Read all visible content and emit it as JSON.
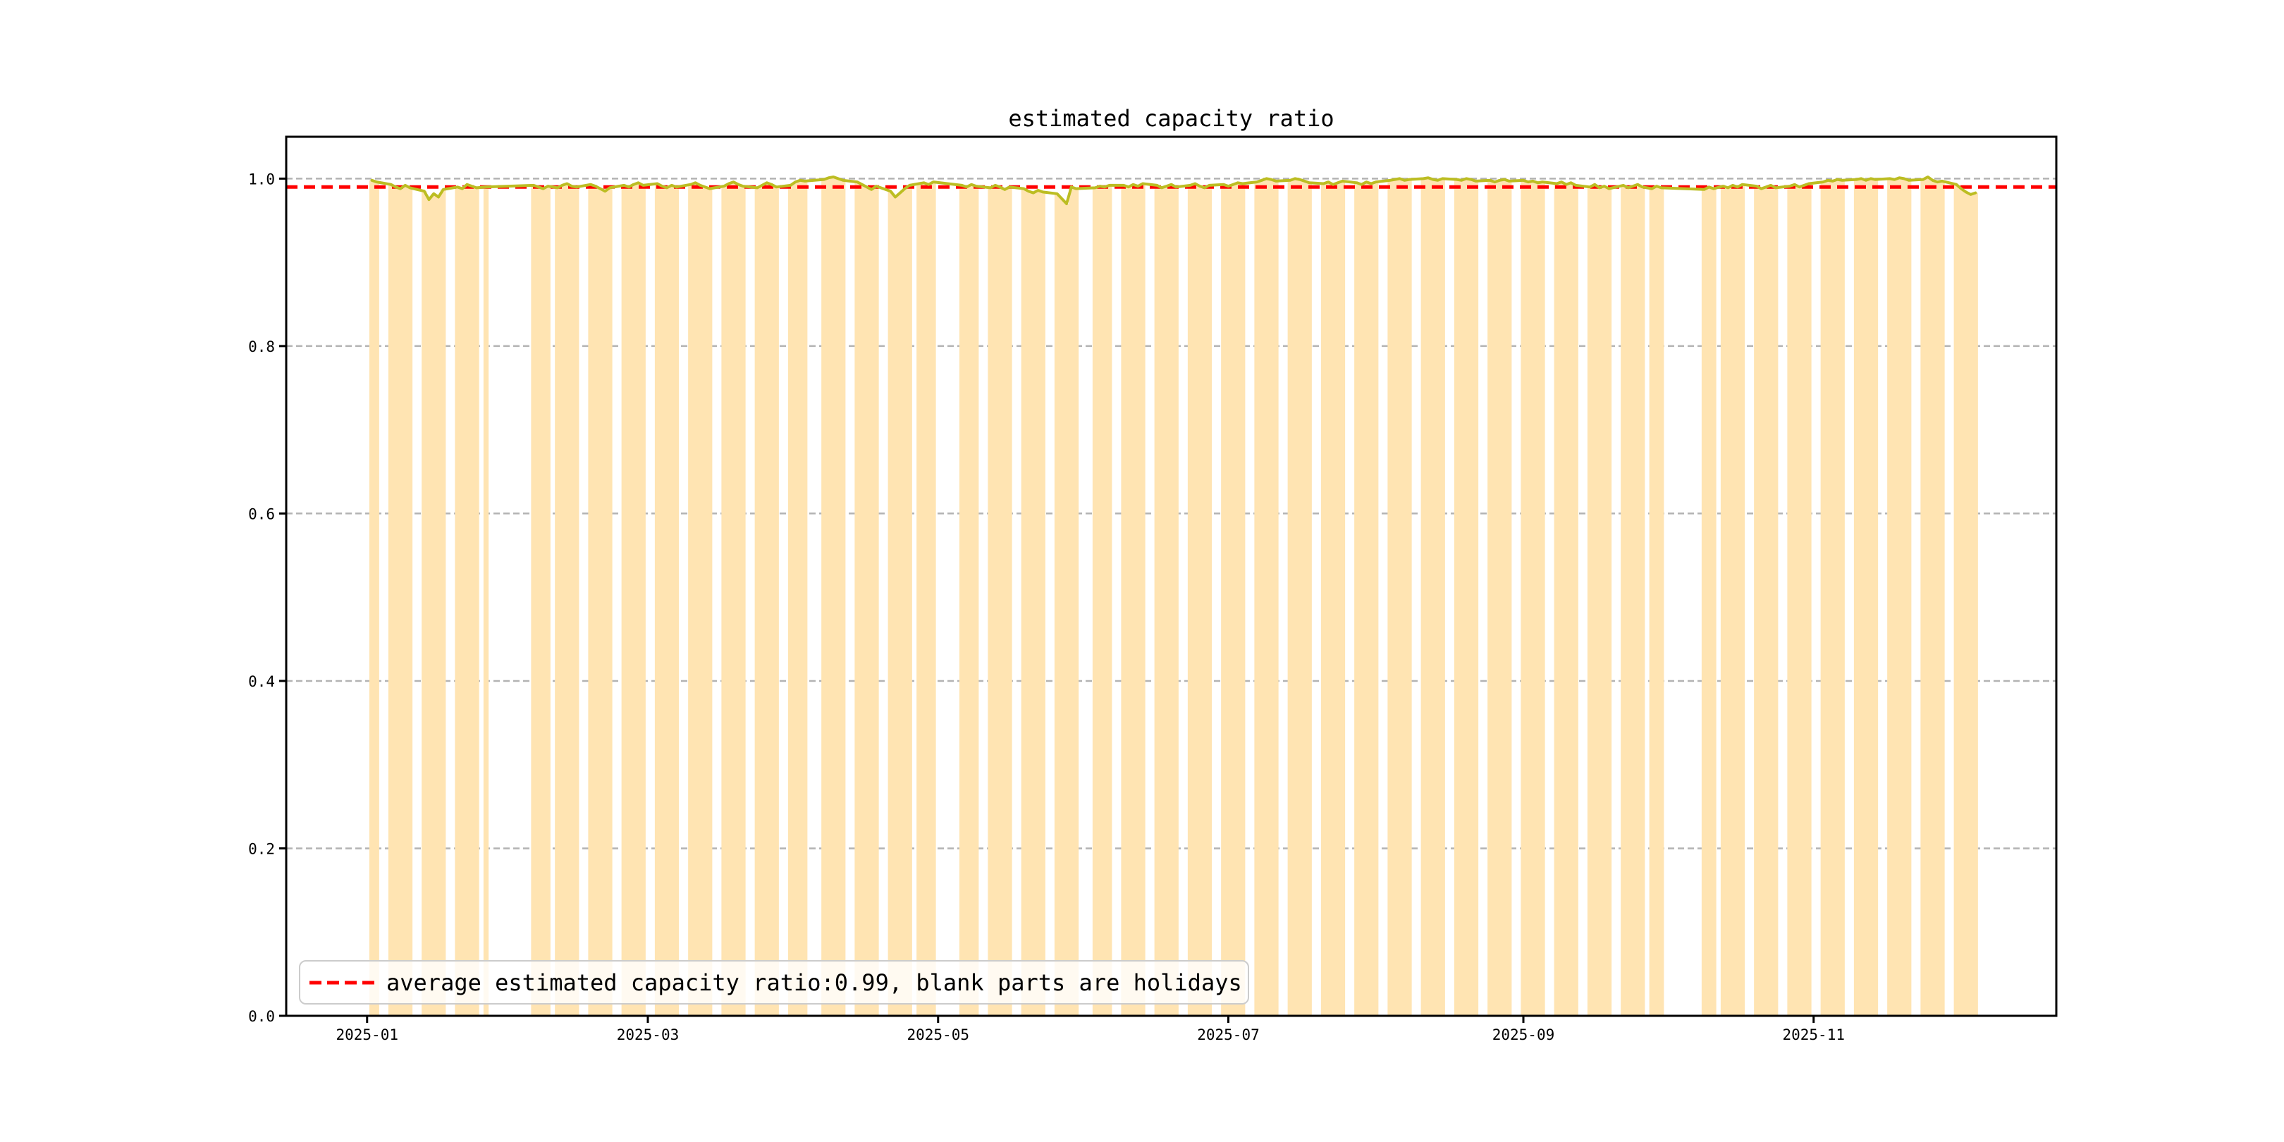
{
  "chart_data": {
    "type": "bar+line",
    "title": "estimated capacity ratio",
    "xlabel": "",
    "ylabel": "",
    "ylim": [
      0,
      1.05
    ],
    "grid": "horizontal-dashed",
    "grid_color": "#b3b3b3",
    "bar_color": "#ffe4b2",
    "line_color": "#bcbd22",
    "axis_color": "#000000",
    "average_line": {
      "value": 0.99,
      "color": "#ff0000",
      "style": "dashed"
    },
    "y_ticks": [
      {
        "label": "0.0",
        "value": 0.0
      },
      {
        "label": "0.2",
        "value": 0.2
      },
      {
        "label": "0.4",
        "value": 0.4
      },
      {
        "label": "0.6",
        "value": 0.6
      },
      {
        "label": "0.8",
        "value": 0.8
      },
      {
        "label": "1.0",
        "value": 1.0
      }
    ],
    "x_ticks": [
      {
        "label": "2025-01",
        "month": "2025-01"
      },
      {
        "label": "2025-03",
        "month": "2025-03"
      },
      {
        "label": "2025-05",
        "month": "2025-05"
      },
      {
        "label": "2025-07",
        "month": "2025-07"
      },
      {
        "label": "2025-09",
        "month": "2025-09"
      },
      {
        "label": "2025-11",
        "month": "2025-11"
      }
    ],
    "series": [
      {
        "month": "2025-01",
        "days": [
          2,
          3,
          6,
          7,
          8,
          9,
          10,
          13,
          14,
          15,
          16,
          17,
          20,
          21,
          22,
          23,
          24,
          26
        ],
        "values": [
          0.998,
          0.996,
          0.993,
          0.99,
          0.988,
          0.992,
          0.989,
          0.985,
          0.975,
          0.982,
          0.978,
          0.987,
          0.99,
          0.988,
          0.993,
          0.991,
          0.989,
          0.99
        ]
      },
      {
        "month": "2025-02",
        "days": [
          5,
          6,
          7,
          8,
          10,
          11,
          12,
          13,
          14,
          17,
          18,
          19,
          20,
          21,
          24,
          25,
          26,
          27,
          28
        ],
        "values": [
          0.992,
          0.99,
          0.988,
          0.991,
          0.989,
          0.992,
          0.994,
          0.991,
          0.99,
          0.993,
          0.991,
          0.988,
          0.985,
          0.989,
          0.992,
          0.99,
          0.993,
          0.995,
          0.992
        ]
      },
      {
        "month": "2025-03",
        "days": [
          3,
          4,
          5,
          6,
          7,
          10,
          11,
          12,
          13,
          14,
          17,
          18,
          19,
          20,
          21,
          24,
          25,
          26,
          27,
          28,
          31
        ],
        "values": [
          0.994,
          0.991,
          0.989,
          0.992,
          0.99,
          0.993,
          0.995,
          0.992,
          0.99,
          0.988,
          0.991,
          0.994,
          0.996,
          0.993,
          0.991,
          0.989,
          0.992,
          0.995,
          0.993,
          0.99,
          0.992
        ]
      },
      {
        "month": "2025-04",
        "days": [
          1,
          2,
          3,
          7,
          8,
          9,
          10,
          11,
          14,
          15,
          16,
          17,
          18,
          21,
          22,
          23,
          24,
          25,
          27,
          28,
          29,
          30
        ],
        "values": [
          0.996,
          0.998,
          0.997,
          0.999,
          1.001,
          1.002,
          1.0,
          0.998,
          0.996,
          0.993,
          0.99,
          0.987,
          0.991,
          0.985,
          0.978,
          0.983,
          0.988,
          0.992,
          0.994,
          0.995,
          0.993,
          0.996
        ]
      },
      {
        "month": "2025-05",
        "days": [
          6,
          7,
          8,
          9,
          12,
          13,
          14,
          15,
          16,
          19,
          20,
          21,
          22,
          23,
          26,
          27,
          28,
          29,
          30
        ],
        "values": [
          0.992,
          0.99,
          0.993,
          0.991,
          0.989,
          0.992,
          0.99,
          0.987,
          0.99,
          0.988,
          0.985,
          0.983,
          0.986,
          0.984,
          0.982,
          0.976,
          0.97,
          0.99,
          0.988
        ]
      },
      {
        "month": "2025-06",
        "days": [
          3,
          4,
          5,
          6,
          9,
          10,
          11,
          12,
          13,
          16,
          17,
          18,
          19,
          20,
          23,
          24,
          25,
          26,
          27,
          30
        ],
        "values": [
          0.989,
          0.991,
          0.99,
          0.992,
          0.992,
          0.99,
          0.993,
          0.991,
          0.994,
          0.992,
          0.989,
          0.991,
          0.993,
          0.99,
          0.992,
          0.994,
          0.991,
          0.989,
          0.992,
          0.993
        ]
      },
      {
        "month": "2025-07",
        "days": [
          1,
          2,
          3,
          4,
          7,
          8,
          9,
          10,
          11,
          14,
          15,
          16,
          17,
          18,
          21,
          22,
          23,
          24,
          25,
          28,
          29,
          30,
          31
        ],
        "values": [
          0.991,
          0.993,
          0.995,
          0.994,
          0.996,
          0.998,
          1.0,
          0.999,
          0.997,
          0.998,
          1.0,
          0.999,
          0.997,
          0.995,
          0.994,
          0.996,
          0.993,
          0.995,
          0.997,
          0.995,
          0.993,
          0.996,
          0.994
        ]
      },
      {
        "month": "2025-08",
        "days": [
          1,
          4,
          5,
          6,
          7,
          8,
          11,
          12,
          13,
          14,
          15,
          18,
          19,
          20,
          21,
          22,
          25,
          26,
          27,
          28,
          29
        ],
        "values": [
          0.996,
          0.998,
          0.999,
          1.0,
          0.998,
          0.999,
          1.0,
          1.001,
          0.999,
          0.998,
          1.0,
          0.999,
          0.998,
          1.0,
          0.999,
          0.997,
          0.998,
          0.996,
          0.998,
          0.999,
          0.997
        ]
      },
      {
        "month": "2025-09",
        "days": [
          1,
          2,
          3,
          4,
          5,
          8,
          9,
          10,
          11,
          12,
          15,
          16,
          17,
          18,
          19,
          22,
          23,
          24,
          25,
          26,
          28,
          29,
          30
        ],
        "values": [
          0.998,
          0.996,
          0.997,
          0.995,
          0.996,
          0.994,
          0.996,
          0.993,
          0.995,
          0.992,
          0.99,
          0.993,
          0.989,
          0.991,
          0.988,
          0.992,
          0.989,
          0.991,
          0.993,
          0.99,
          0.988,
          0.991,
          0.989
        ]
      },
      {
        "month": "2025-10",
        "days": [
          9,
          10,
          11,
          13,
          14,
          15,
          16,
          17,
          20,
          21,
          22,
          23,
          24,
          27,
          28,
          29,
          30,
          31
        ],
        "values": [
          0.987,
          0.99,
          0.988,
          0.991,
          0.989,
          0.992,
          0.99,
          0.993,
          0.991,
          0.988,
          0.99,
          0.992,
          0.989,
          0.991,
          0.993,
          0.99,
          0.992,
          0.994
        ]
      },
      {
        "month": "2025-11",
        "days": [
          3,
          4,
          5,
          6,
          7,
          10,
          11,
          12,
          13,
          14,
          17,
          18,
          19,
          20,
          21,
          24,
          25,
          26,
          27,
          28
        ],
        "values": [
          0.996,
          0.998,
          0.997,
          0.999,
          0.998,
          0.999,
          1.0,
          0.998,
          1.0,
          0.999,
          1.0,
          0.999,
          1.001,
          1.0,
          0.998,
          0.999,
          1.002,
          0.998,
          0.996,
          0.997
        ]
      },
      {
        "month": "2025-12",
        "days": [
          1,
          2,
          3,
          4,
          5
        ],
        "values": [
          0.993,
          0.988,
          0.984,
          0.981,
          0.983
        ]
      }
    ]
  },
  "legend": {
    "label": "average estimated capacity ratio:0.99, blank parts are holidays"
  }
}
